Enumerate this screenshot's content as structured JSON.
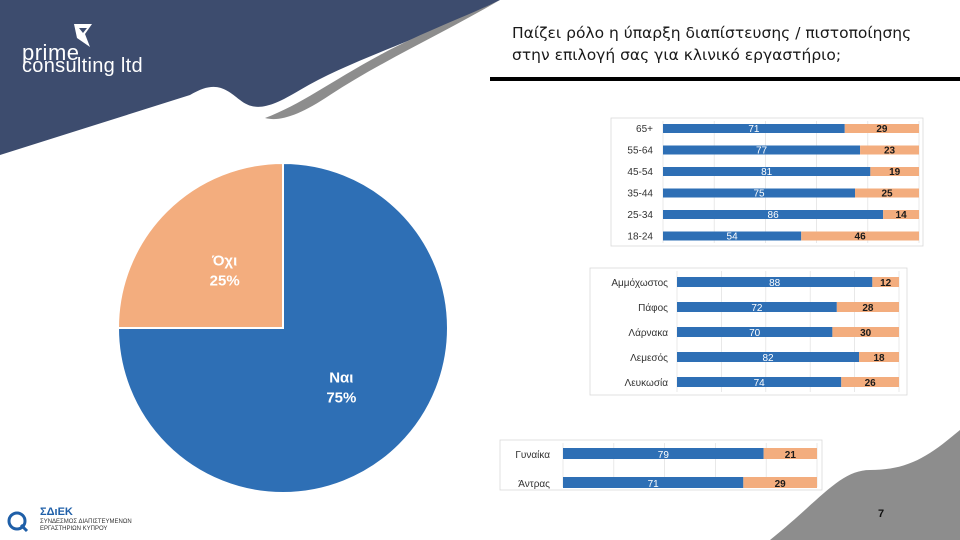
{
  "brand": {
    "prime": "prime",
    "consulting": "consulting ltd"
  },
  "title": "Παίζει ρόλο η ύπαρξη διαπίστευσης / πιστοποίησης στην επιλογή σας για κλινικό εργαστήριο;",
  "page_number": "7",
  "footer_org": {
    "abbr": "ΣΔιΕΚ",
    "name_line1": "ΣΥΝΔΕΣΜΟΣ ΔΙΑΠΙΣΤΕΥΜΕΝΩΝ",
    "name_line2": "ΕΡΓΑΣΤΗΡΙΩΝ ΚΥΠΡΟΥ"
  },
  "colors": {
    "yes": "#2e6fb5",
    "no": "#f3ad7e",
    "dark_shape": "#3d4c6e",
    "gray_shape": "#8d8d8d"
  },
  "chart_data": [
    {
      "type": "pie",
      "labels": [
        "Ναι",
        "Όχι"
      ],
      "values": [
        75,
        25
      ],
      "value_labels": [
        "75%",
        "25%"
      ]
    },
    {
      "type": "bar",
      "orientation": "horizontal",
      "stacked": true,
      "categories": [
        "65+",
        "55-64",
        "45-54",
        "35-44",
        "25-34",
        "18-24"
      ],
      "series": [
        {
          "values": [
            71,
            77,
            81,
            75,
            86,
            54
          ]
        },
        {
          "values": [
            29,
            23,
            19,
            25,
            14,
            46
          ]
        }
      ]
    },
    {
      "type": "bar",
      "orientation": "horizontal",
      "stacked": true,
      "categories": [
        "Αμμόχωστος",
        "Πάφος",
        "Λάρνακα",
        "Λεμεσός",
        "Λευκωσία"
      ],
      "series": [
        {
          "values": [
            88,
            72,
            70,
            82,
            74
          ]
        },
        {
          "values": [
            12,
            28,
            30,
            18,
            26
          ]
        }
      ]
    },
    {
      "type": "bar",
      "orientation": "horizontal",
      "stacked": true,
      "categories": [
        "Γυναίκα",
        "Άντρας"
      ],
      "series": [
        {
          "values": [
            79,
            71
          ]
        },
        {
          "values": [
            21,
            29
          ]
        }
      ]
    }
  ]
}
